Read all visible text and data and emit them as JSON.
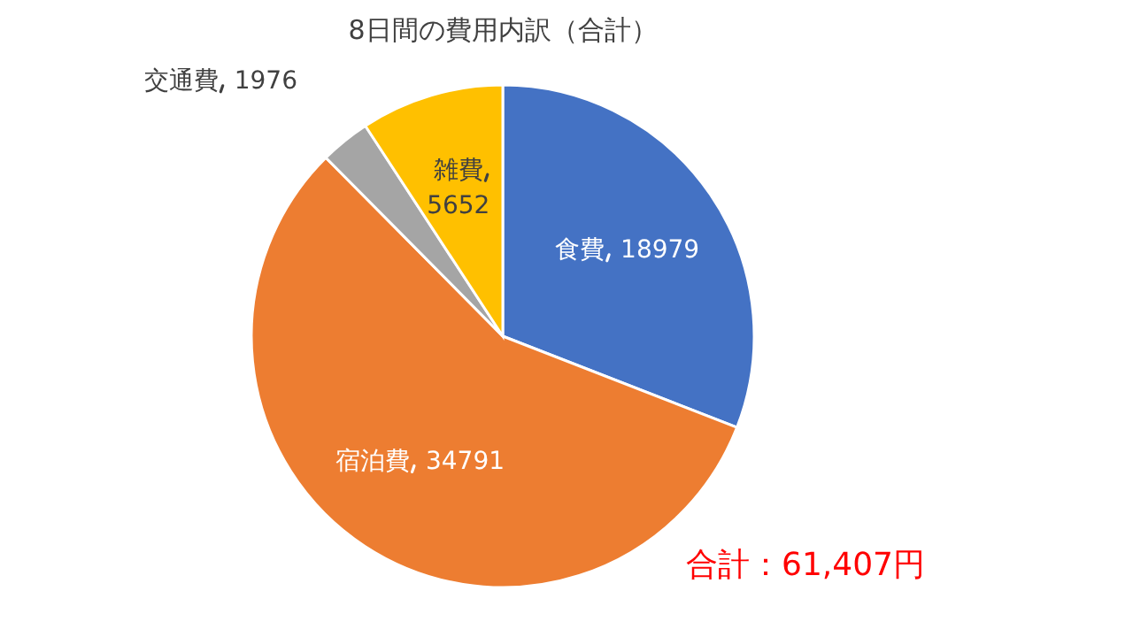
{
  "chart_data": {
    "type": "pie",
    "title": "8日間の費用内訳（合計）",
    "categories": [
      "食費",
      "宿泊費",
      "交通費",
      "雑費"
    ],
    "values": [
      18979,
      34791,
      1976,
      5652
    ],
    "colors": [
      "#4472c4",
      "#ed7d31",
      "#a5a5a5",
      "#ffc000"
    ],
    "data_labels": true,
    "annotations": [
      "合計：61,407円"
    ]
  }
}
